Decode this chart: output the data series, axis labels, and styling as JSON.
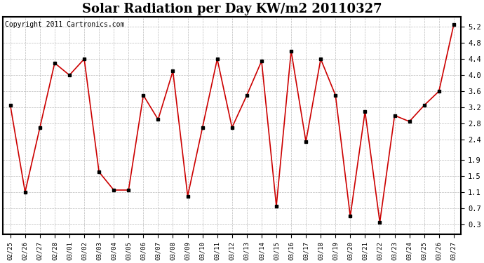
{
  "title": "Solar Radiation per Day KW/m2 20110327",
  "copyright": "Copyright 2011 Cartronics.com",
  "dates": [
    "02/25",
    "02/26",
    "02/27",
    "02/28",
    "03/01",
    "03/02",
    "03/03",
    "03/04",
    "03/05",
    "03/06",
    "03/07",
    "03/08",
    "03/09",
    "03/10",
    "03/11",
    "03/12",
    "03/13",
    "03/14",
    "03/15",
    "03/16",
    "03/17",
    "03/18",
    "03/19",
    "03/20",
    "03/21",
    "03/22",
    "03/23",
    "03/24",
    "03/25",
    "03/26",
    "03/27"
  ],
  "values": [
    3.25,
    1.1,
    2.7,
    4.3,
    4.0,
    4.4,
    1.6,
    1.15,
    1.15,
    3.5,
    2.9,
    4.1,
    1.0,
    2.7,
    4.4,
    2.7,
    3.5,
    4.35,
    0.75,
    4.6,
    2.35,
    4.4,
    3.5,
    0.5,
    3.1,
    0.35,
    3.0,
    2.85,
    3.25,
    3.6,
    5.25
  ],
  "line_color": "#cc0000",
  "marker_color": "#000000",
  "marker_size": 3,
  "background_color": "#ffffff",
  "grid_color": "#bbbbbb",
  "yticks": [
    0.3,
    0.7,
    1.1,
    1.5,
    1.9,
    2.4,
    2.8,
    3.2,
    3.6,
    4.0,
    4.4,
    4.8,
    5.2
  ],
  "ylim": [
    0.05,
    5.45
  ],
  "title_fontsize": 13,
  "copyright_fontsize": 7
}
